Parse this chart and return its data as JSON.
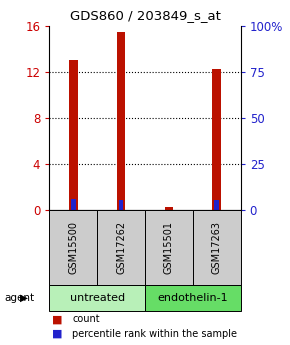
{
  "title": "GDS860 / 203849_s_at",
  "samples": [
    "GSM15500",
    "GSM17262",
    "GSM15501",
    "GSM17263"
  ],
  "group_colors": [
    "#b8f0b8",
    "#66dd66"
  ],
  "count_values": [
    13.0,
    15.5,
    0.3,
    12.3
  ],
  "percentile_values": [
    6.0,
    5.8,
    0.5,
    5.5
  ],
  "ylim_left": [
    0,
    16
  ],
  "ylim_right": [
    0,
    100
  ],
  "yticks_left": [
    0,
    4,
    8,
    12,
    16
  ],
  "yticks_right": [
    0,
    25,
    50,
    75,
    100
  ],
  "yticklabels_right": [
    "0",
    "25",
    "50",
    "75",
    "100%"
  ],
  "bar_color": "#bb1100",
  "percentile_color": "#2222cc",
  "bar_width": 0.18,
  "axis_color_left": "#cc0000",
  "axis_color_right": "#2222cc",
  "sample_box_color": "#cccccc",
  "group_label_untreated": "untreated",
  "group_label_endothelin": "endothelin-1",
  "legend_count_label": "count",
  "legend_percentile_label": "percentile rank within the sample",
  "background_color": "#ffffff"
}
